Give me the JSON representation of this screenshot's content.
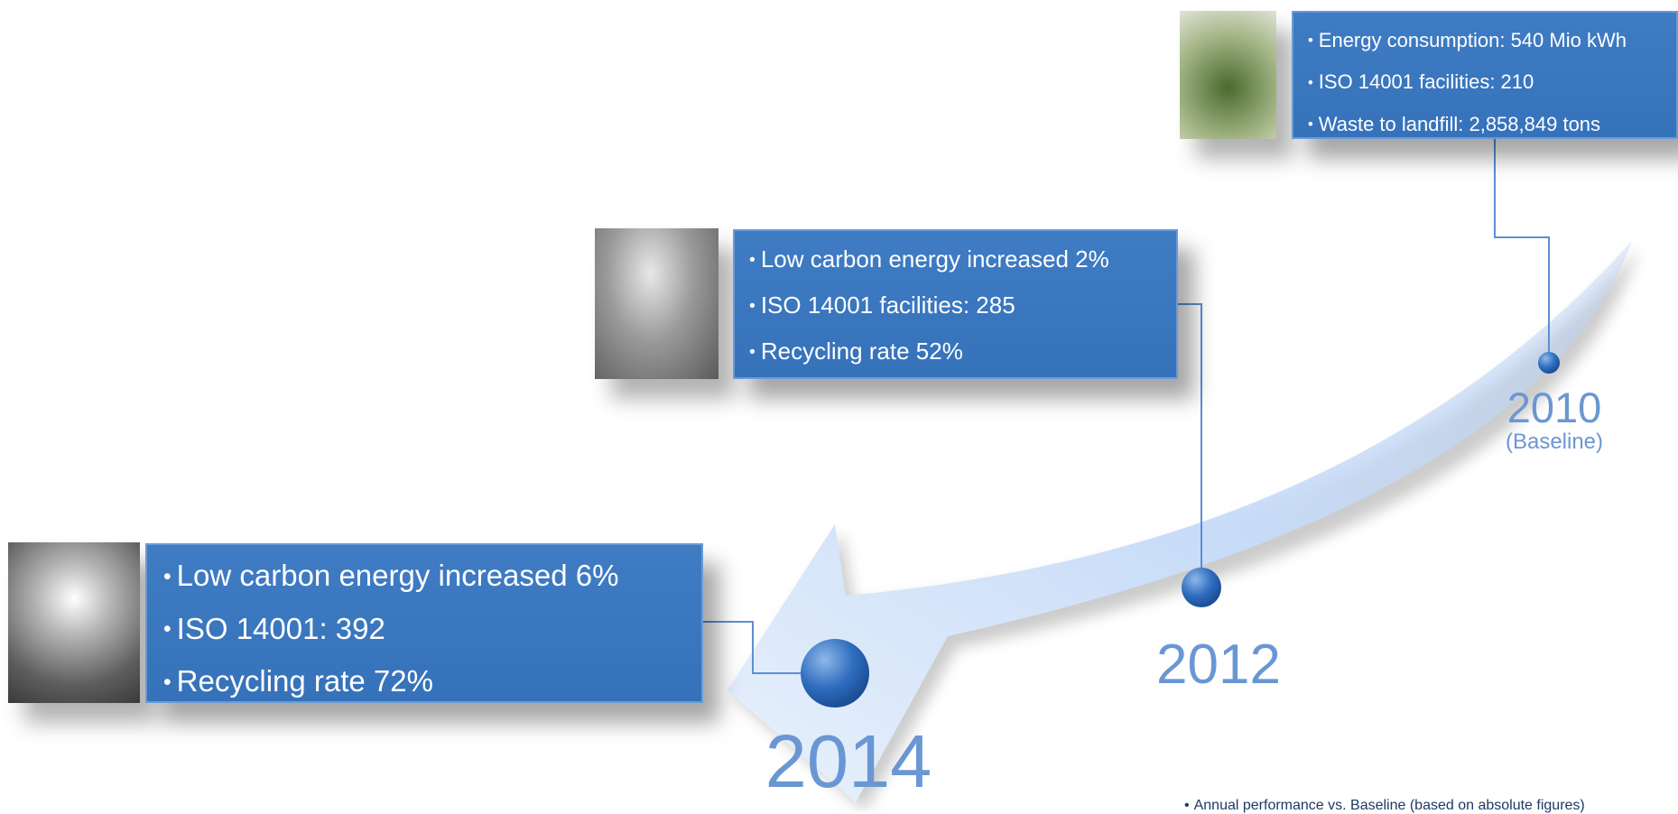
{
  "milestones": [
    {
      "year": "2010",
      "note": "(Baseline)",
      "bullets": [
        "Energy consumption: 540 Mio kWh",
        "ISO 14001 facilities: 210",
        "Waste to landfill:  2,858,849 tons"
      ]
    },
    {
      "year": "2012",
      "bullets": [
        "Low carbon energy increased 2%",
        "ISO 14001 facilities: 285",
        "Recycling rate 52%"
      ]
    },
    {
      "year": "2014",
      "bullets": [
        "Low carbon energy increased 6%",
        "ISO 14001: 392",
        "Recycling rate 72%"
      ]
    }
  ],
  "footnote": "Annual performance vs. Baseline (based on absolute figures)"
}
